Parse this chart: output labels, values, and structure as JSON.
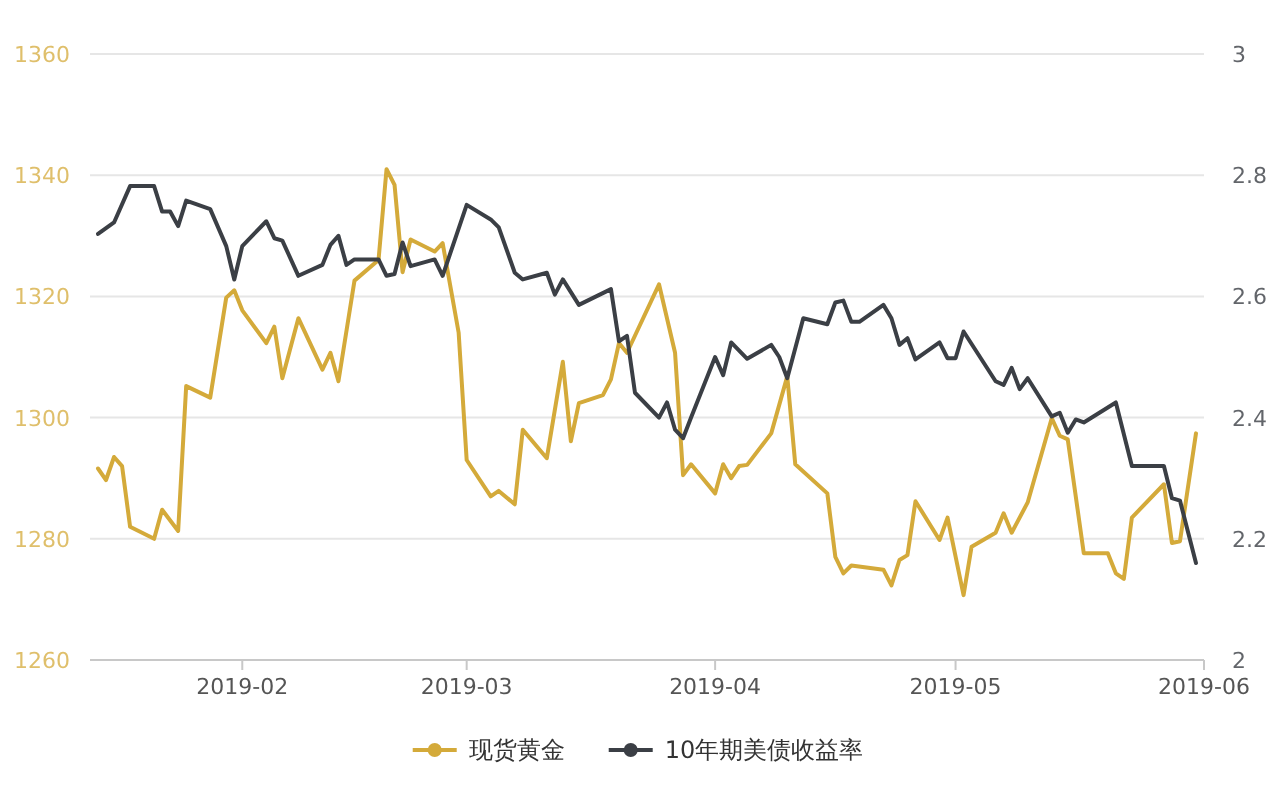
{
  "chart_data": {
    "type": "line",
    "xlim": [
      "2019-01-13",
      "2019-06-01"
    ],
    "xticks": [
      "2019-02",
      "2019-03",
      "2019-04",
      "2019-05",
      "2019-06"
    ],
    "ylim": [
      1260,
      1360
    ],
    "yticks": [
      1260,
      1280,
      1300,
      1320,
      1340,
      1360
    ],
    "y2lim": [
      2,
      3
    ],
    "y2ticks": [
      2,
      2.2,
      2.4,
      2.6,
      2.8,
      3
    ],
    "grid": "y",
    "legend": "bottom",
    "series": [
      {
        "name": "现货黄金",
        "color": "#d4aa3a",
        "x": [
          "2019-01-14",
          "2019-01-15",
          "2019-01-16",
          "2019-01-17",
          "2019-01-18",
          "2019-01-21",
          "2019-01-22",
          "2019-01-24",
          "2019-01-25",
          "2019-01-28",
          "2019-01-30",
          "2019-01-31",
          "2019-02-01",
          "2019-02-04",
          "2019-02-05",
          "2019-02-06",
          "2019-02-08",
          "2019-02-11",
          "2019-02-12",
          "2019-02-13",
          "2019-02-15",
          "2019-02-18",
          "2019-02-19",
          "2019-02-20",
          "2019-02-21",
          "2019-02-22",
          "2019-02-25",
          "2019-02-26",
          "2019-02-28",
          "2019-03-01",
          "2019-03-04",
          "2019-03-05",
          "2019-03-07",
          "2019-03-08",
          "2019-03-11",
          "2019-03-13",
          "2019-03-14",
          "2019-03-15",
          "2019-03-18",
          "2019-03-19",
          "2019-03-20",
          "2019-03-21",
          "2019-03-25",
          "2019-03-27",
          "2019-03-28",
          "2019-03-29",
          "2019-04-01",
          "2019-04-02",
          "2019-04-03",
          "2019-04-04",
          "2019-04-05",
          "2019-04-08",
          "2019-04-10",
          "2019-04-11",
          "2019-04-15",
          "2019-04-16",
          "2019-04-17",
          "2019-04-18",
          "2019-04-22",
          "2019-04-23",
          "2019-04-24",
          "2019-04-25",
          "2019-04-26",
          "2019-04-29",
          "2019-04-30",
          "2019-05-02",
          "2019-05-03",
          "2019-05-06",
          "2019-05-07",
          "2019-05-08",
          "2019-05-10",
          "2019-05-13",
          "2019-05-14",
          "2019-05-15",
          "2019-05-17",
          "2019-05-20",
          "2019-05-21",
          "2019-05-22",
          "2019-05-23",
          "2019-05-27",
          "2019-05-28",
          "2019-05-29",
          "2019-05-31"
        ],
        "values": [
          1291.6,
          1289.7,
          1293.5,
          1292,
          1282,
          1280,
          1284.8,
          1281.3,
          1305.2,
          1303.3,
          1319.8,
          1321,
          1317.7,
          1312.3,
          1315,
          1306.5,
          1316.4,
          1307.9,
          1310.7,
          1306,
          1322.6,
          1326,
          1341,
          1338.4,
          1324,
          1329.4,
          1327.4,
          1328.8,
          1314,
          1293,
          1287,
          1287.9,
          1285.7,
          1298,
          1293.3,
          1309.2,
          1296.1,
          1302.4,
          1303.7,
          1306.3,
          1312.3,
          1310.7,
          1322,
          1310.7,
          1290.5,
          1292.3,
          1287.5,
          1292.3,
          1290,
          1292,
          1292.2,
          1297.4,
          1306.8,
          1292.3,
          1287.5,
          1277,
          1274.3,
          1275.6,
          1274.9,
          1272.3,
          1276.5,
          1277.3,
          1286.2,
          1279.8,
          1283.5,
          1270.7,
          1278.7,
          1281,
          1284.2,
          1281,
          1286,
          1299.9,
          1297,
          1296.4,
          1277.6,
          1277.6,
          1274.3,
          1273.4,
          1283.5,
          1289,
          1279.3,
          1279.6,
          1297.4
        ]
      },
      {
        "name": "10年期美债收益率",
        "color": "#3b3f45",
        "axis": "y2",
        "x": [
          "2019-01-14",
          "2019-01-16",
          "2019-01-18",
          "2019-01-21",
          "2019-01-22",
          "2019-01-23",
          "2019-01-24",
          "2019-01-25",
          "2019-01-28",
          "2019-01-30",
          "2019-01-31",
          "2019-02-01",
          "2019-02-04",
          "2019-02-05",
          "2019-02-06",
          "2019-02-08",
          "2019-02-11",
          "2019-02-12",
          "2019-02-13",
          "2019-02-14",
          "2019-02-15",
          "2019-02-18",
          "2019-02-19",
          "2019-02-20",
          "2019-02-21",
          "2019-02-22",
          "2019-02-25",
          "2019-02-26",
          "2019-03-01",
          "2019-03-04",
          "2019-03-05",
          "2019-03-07",
          "2019-03-08",
          "2019-03-11",
          "2019-03-12",
          "2019-03-13",
          "2019-03-15",
          "2019-03-19",
          "2019-03-20",
          "2019-03-21",
          "2019-03-22",
          "2019-03-25",
          "2019-03-26",
          "2019-03-27",
          "2019-03-28",
          "2019-03-29",
          "2019-04-01",
          "2019-04-02",
          "2019-04-03",
          "2019-04-05",
          "2019-04-08",
          "2019-04-09",
          "2019-04-10",
          "2019-04-12",
          "2019-04-15",
          "2019-04-16",
          "2019-04-17",
          "2019-04-18",
          "2019-04-19",
          "2019-04-22",
          "2019-04-23",
          "2019-04-24",
          "2019-04-25",
          "2019-04-26",
          "2019-04-29",
          "2019-04-30",
          "2019-05-01",
          "2019-05-02",
          "2019-05-06",
          "2019-05-07",
          "2019-05-08",
          "2019-05-09",
          "2019-05-10",
          "2019-05-13",
          "2019-05-14",
          "2019-05-15",
          "2019-05-16",
          "2019-05-17",
          "2019-05-21",
          "2019-05-23",
          "2019-05-27",
          "2019-05-28",
          "2019-05-29",
          "2019-05-31"
        ],
        "values": [
          2.703,
          2.722,
          2.782,
          2.782,
          2.74,
          2.74,
          2.716,
          2.758,
          2.744,
          2.683,
          2.628,
          2.683,
          2.724,
          2.696,
          2.692,
          2.634,
          2.652,
          2.685,
          2.7,
          2.652,
          2.661,
          2.661,
          2.634,
          2.637,
          2.689,
          2.65,
          2.661,
          2.634,
          2.751,
          2.727,
          2.714,
          2.639,
          2.628,
          2.639,
          2.603,
          2.628,
          2.586,
          2.612,
          2.526,
          2.535,
          2.441,
          2.4,
          2.425,
          2.38,
          2.366,
          2.4,
          2.5,
          2.47,
          2.524,
          2.497,
          2.52,
          2.5,
          2.465,
          2.564,
          2.554,
          2.59,
          2.593,
          2.558,
          2.558,
          2.586,
          2.564,
          2.52,
          2.531,
          2.496,
          2.524,
          2.498,
          2.498,
          2.542,
          2.46,
          2.454,
          2.482,
          2.447,
          2.465,
          2.402,
          2.408,
          2.375,
          2.397,
          2.392,
          2.425,
          2.32,
          2.32,
          2.267,
          2.263,
          2.16
        ]
      }
    ]
  }
}
